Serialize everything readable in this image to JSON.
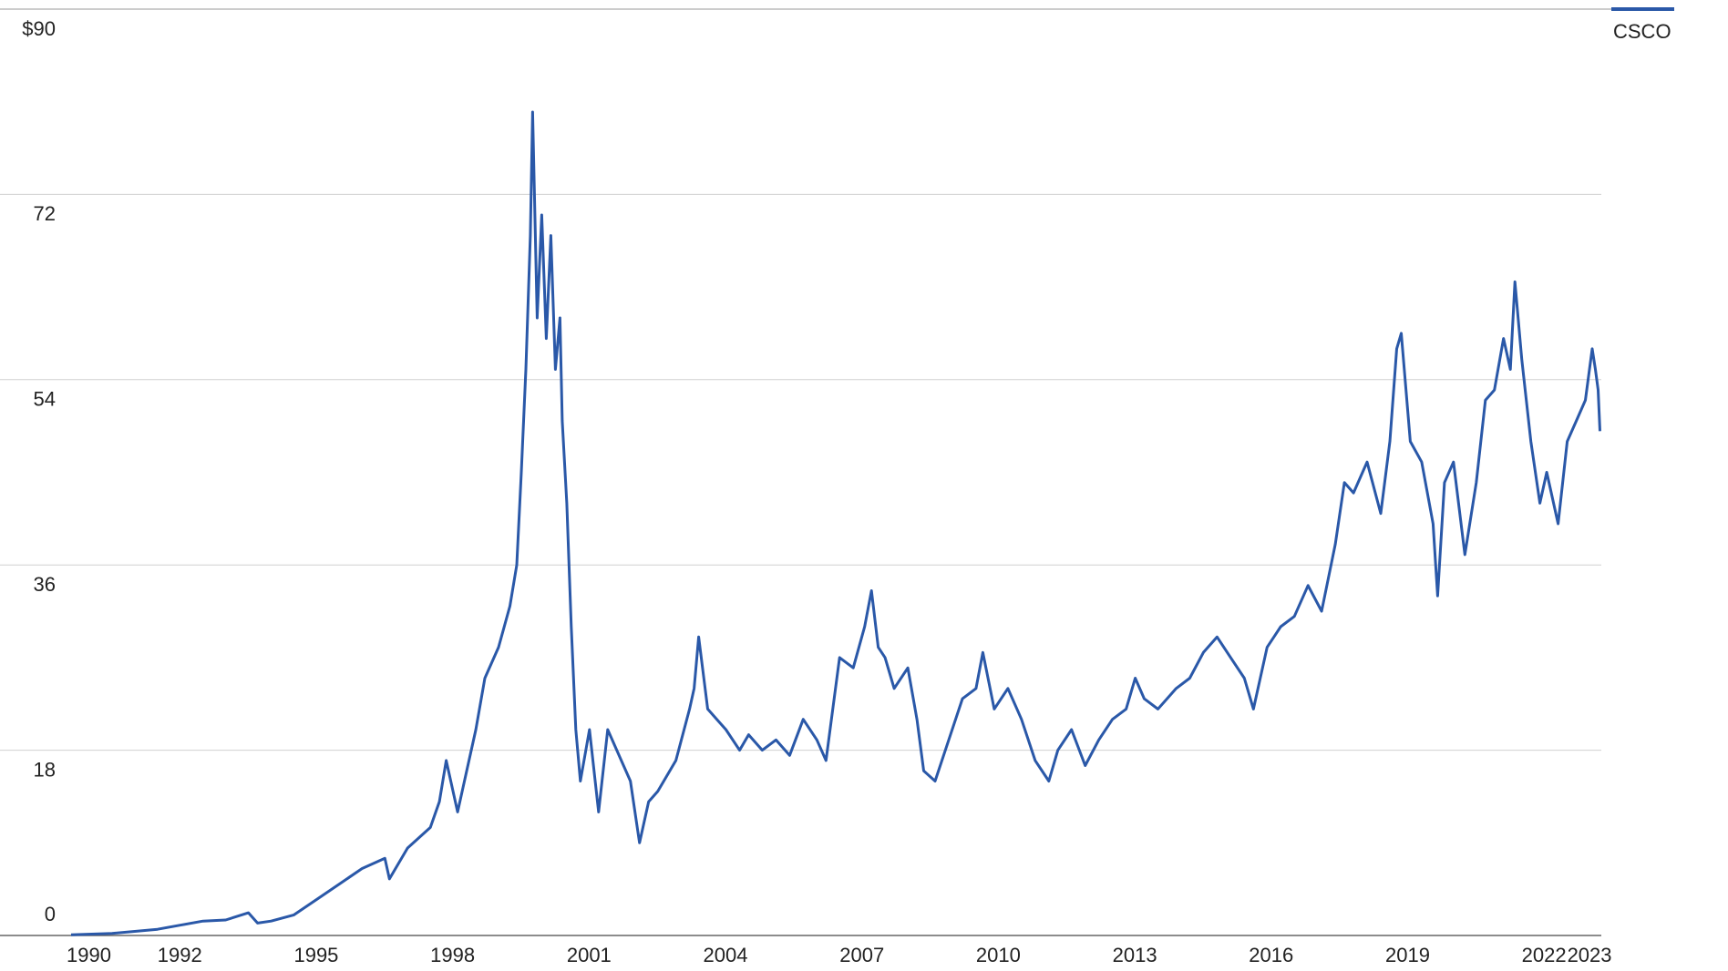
{
  "chart_data": {
    "type": "line",
    "x": [
      1990.1,
      1991,
      1992,
      1992.5,
      1993,
      1993.5,
      1994,
      1994.2,
      1994.5,
      1995,
      1995.5,
      1996,
      1996.5,
      1997,
      1997.1,
      1997.5,
      1998,
      1998.2,
      1998.35,
      1998.6,
      1999,
      1999.2,
      1999.5,
      1999.75,
      1999.9,
      2000.0,
      2000.1,
      2000.2,
      2000.25,
      2000.35,
      2000.45,
      2000.55,
      2000.65,
      2000.75,
      2000.85,
      2000.9,
      2001.0,
      2001.1,
      2001.2,
      2001.3,
      2001.5,
      2001.7,
      2001.9,
      2002.2,
      2002.4,
      2002.6,
      2002.8,
      2003.0,
      2003.4,
      2003.7,
      2003.8,
      2003.9,
      2004.1,
      2004.3,
      2004.5,
      2004.8,
      2005.0,
      2005.3,
      2005.6,
      2005.9,
      2006.2,
      2006.5,
      2006.7,
      2007.0,
      2007.3,
      2007.55,
      2007.7,
      2007.85,
      2008.0,
      2008.2,
      2008.5,
      2008.7,
      2008.85,
      2009.1,
      2009.4,
      2009.7,
      2010.0,
      2010.15,
      2010.4,
      2010.7,
      2011.0,
      2011.3,
      2011.6,
      2011.8,
      2012.1,
      2012.4,
      2012.7,
      2013.0,
      2013.3,
      2013.5,
      2013.7,
      2014.0,
      2014.4,
      2014.7,
      2015.0,
      2015.3,
      2015.6,
      2015.9,
      2016.1,
      2016.4,
      2016.7,
      2017.0,
      2017.3,
      2017.6,
      2017.9,
      2018.1,
      2018.3,
      2018.6,
      2018.9,
      2019.1,
      2019.25,
      2019.35,
      2019.55,
      2019.8,
      2020.05,
      2020.15,
      2020.3,
      2020.5,
      2020.75,
      2021.0,
      2021.2,
      2021.4,
      2021.6,
      2021.75,
      2021.85,
      2022.0,
      2022.2,
      2022.4,
      2022.55,
      2022.8,
      2023.0,
      2023.2,
      2023.4,
      2023.55,
      2023.62,
      2023.68,
      2023.72
    ],
    "series": [
      {
        "name": "CSCO",
        "color": "#2a58a8",
        "values": [
          0.07,
          0.2,
          0.6,
          1.0,
          1.4,
          1.5,
          2.2,
          1.2,
          1.4,
          2.0,
          3.5,
          5.0,
          6.5,
          7.5,
          5.5,
          8.5,
          10.5,
          13,
          17,
          12,
          20,
          25,
          28,
          32,
          36,
          45,
          55,
          68,
          80,
          60,
          70,
          58,
          68,
          55,
          60,
          50,
          42,
          30,
          20,
          15,
          20,
          12,
          20,
          17,
          15,
          9,
          13,
          14,
          17,
          22,
          24,
          29,
          22,
          21,
          20,
          18,
          19.5,
          18,
          19,
          17.5,
          21,
          19,
          17,
          27,
          26,
          30,
          33.5,
          28,
          27,
          24,
          26,
          21,
          16,
          15,
          19,
          23,
          24,
          27.5,
          22,
          24,
          21,
          17,
          15,
          18,
          20,
          16.5,
          19,
          21,
          22,
          25,
          23,
          22,
          24,
          25,
          27.5,
          29,
          27,
          25,
          22,
          28,
          30,
          31,
          34,
          31.5,
          38,
          44,
          43,
          46,
          41,
          48,
          57,
          58.5,
          48,
          46,
          40,
          33,
          44,
          46,
          37,
          44,
          52,
          53,
          58,
          55,
          63.5,
          56,
          48,
          42,
          45,
          40,
          48,
          50,
          52,
          57,
          55,
          53,
          49
        ]
      }
    ],
    "xlim": [
      1990,
      2023.75
    ],
    "xticks": [
      1990,
      1992,
      1995,
      1998,
      2001,
      2004,
      2007,
      2010,
      2013,
      2016,
      2019,
      2022,
      2023
    ],
    "ylim": [
      0,
      90
    ],
    "yticks": [
      0,
      18,
      36,
      54,
      72,
      {
        "value": 90,
        "label": "$90"
      }
    ],
    "grid": true,
    "legend": "top-right"
  }
}
